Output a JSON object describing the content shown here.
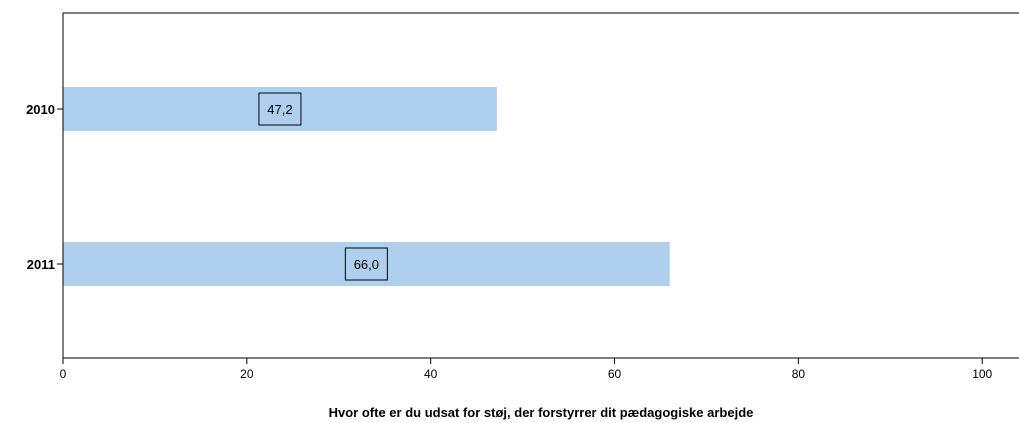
{
  "chart_data": {
    "type": "bar",
    "orientation": "horizontal",
    "categories": [
      "2010",
      "2011"
    ],
    "values": [
      47.2,
      66.0
    ],
    "data_labels": [
      "47,2",
      "66,0"
    ],
    "title": "",
    "xlabel": "Hvor ofte er du udsat for støj, der forstyrrer dit pædagogiske arbejde",
    "ylabel": "",
    "xlim": [
      0,
      104
    ],
    "xticks": [
      0,
      20,
      40,
      60,
      80,
      100
    ],
    "grid": false,
    "bar_color": "#aecfee"
  }
}
